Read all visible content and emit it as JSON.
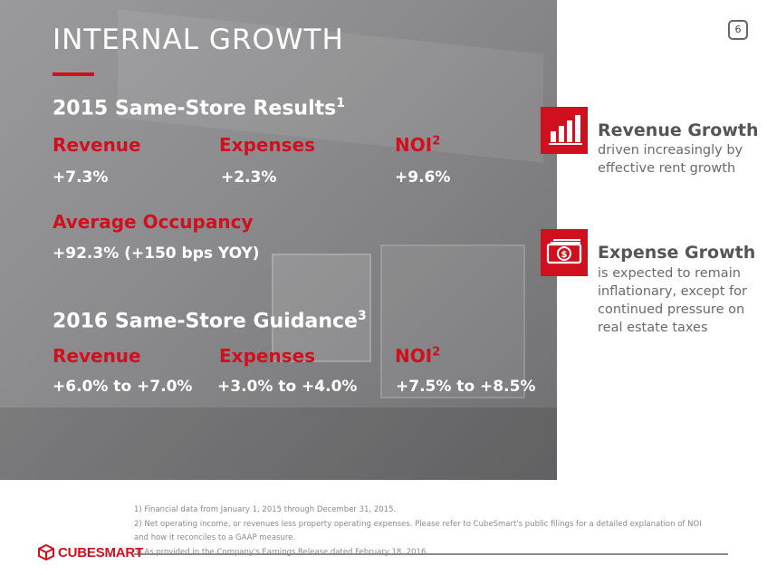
{
  "title": "INTERNAL GROWTH",
  "page_number": "6",
  "results_2015": {
    "heading": "2015 Same-Store Results",
    "heading_sup": "1",
    "columns": [
      {
        "label": "Revenue",
        "sup": "",
        "value": "+7.3%"
      },
      {
        "label": "Expenses",
        "sup": "",
        "value": "+2.3%"
      },
      {
        "label": "NOI",
        "sup": "2",
        "value": "+9.6%"
      }
    ]
  },
  "occupancy": {
    "label": "Average Occupancy",
    "value": "+92.3% (+150 bps YOY)"
  },
  "guidance_2016": {
    "heading": "2016 Same-Store Guidance",
    "heading_sup": "3",
    "columns": [
      {
        "label": "Revenue",
        "sup": "",
        "value": "+6.0% to +7.0%"
      },
      {
        "label": "Expenses",
        "sup": "",
        "value": "+3.0% to +4.0%"
      },
      {
        "label": "NOI",
        "sup": "2",
        "value": "+7.5% to +8.5%"
      }
    ]
  },
  "sidebar": {
    "revenue": {
      "title": "Revenue Growth",
      "description": "driven increasingly by effective rent growth",
      "icon": "bar-chart-icon"
    },
    "expense": {
      "title": "Expense Growth",
      "description": "is expected to remain inflationary, except for continued pressure on real estate taxes",
      "icon": "money-icon"
    }
  },
  "footnotes": [
    "1) Financial data from January 1, 2015 through December 31, 2015.",
    "2) Net operating income, or revenues less property operating expenses. Please refer to CubeSmart's public filings for a detailed explanation of NOI",
    "and how it reconciles to a GAAP measure.",
    "3) As provided in the Company's Earnings Release dated February 18, 2016."
  ],
  "logo": {
    "text": "CUBESMART"
  },
  "colors": {
    "accent": "#d0101e",
    "panel": "#8c8c8e"
  }
}
